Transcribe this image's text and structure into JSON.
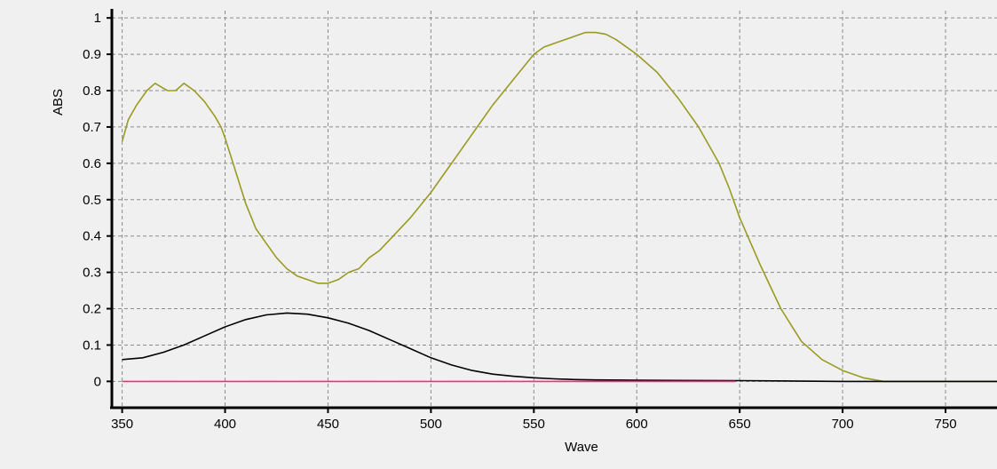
{
  "chart_data": {
    "type": "line",
    "title": "",
    "xlabel": "Wave",
    "ylabel": "ABS",
    "xlim": [
      345,
      775
    ],
    "ylim": [
      -0.07,
      1.02
    ],
    "xticks": [
      350,
      400,
      450,
      500,
      550,
      600,
      650,
      700,
      750
    ],
    "yticks": [
      0,
      0.1,
      0.2,
      0.3,
      0.4,
      0.5,
      0.6,
      0.7,
      0.8,
      0.9,
      1
    ],
    "xtick_labels": [
      "350",
      "400",
      "450",
      "500",
      "550",
      "600",
      "650",
      "700",
      "750"
    ],
    "ytick_labels": [
      "0",
      "0.1",
      "0.2",
      "0.3",
      "0.4",
      "0.5",
      "0.6",
      "0.7",
      "0.8",
      "0.9",
      "1"
    ],
    "grid": true,
    "legend": "none",
    "series": [
      {
        "color": "#9a9a22",
        "x": [
          350,
          353,
          357,
          362,
          366,
          369,
          372,
          376,
          380,
          385,
          390,
          395,
          398,
          400,
          405,
          410,
          415,
          420,
          425,
          430,
          435,
          440,
          445,
          450,
          455,
          460,
          465,
          470,
          475,
          480,
          490,
          500,
          510,
          520,
          530,
          540,
          550,
          555,
          560,
          565,
          570,
          575,
          580,
          585,
          590,
          600,
          610,
          620,
          630,
          640,
          645,
          650,
          660,
          670,
          680,
          690,
          700,
          710,
          720,
          723,
          730,
          750,
          775
        ],
        "y": [
          0.66,
          0.72,
          0.76,
          0.8,
          0.82,
          0.81,
          0.8,
          0.8,
          0.82,
          0.8,
          0.77,
          0.73,
          0.7,
          0.67,
          0.58,
          0.49,
          0.42,
          0.38,
          0.34,
          0.31,
          0.29,
          0.28,
          0.27,
          0.27,
          0.28,
          0.3,
          0.31,
          0.34,
          0.36,
          0.39,
          0.45,
          0.52,
          0.6,
          0.68,
          0.76,
          0.83,
          0.9,
          0.92,
          0.93,
          0.94,
          0.95,
          0.96,
          0.96,
          0.955,
          0.94,
          0.9,
          0.85,
          0.78,
          0.7,
          0.6,
          0.53,
          0.45,
          0.32,
          0.2,
          0.11,
          0.06,
          0.03,
          0.01,
          0.0,
          0.0,
          0.0,
          0.0,
          0.0
        ]
      },
      {
        "color": "#000000",
        "x": [
          350,
          360,
          370,
          380,
          390,
          400,
          410,
          420,
          430,
          440,
          450,
          460,
          470,
          480,
          490,
          500,
          510,
          520,
          530,
          540,
          550,
          560,
          570,
          580,
          600,
          650,
          700,
          775
        ],
        "y": [
          0.06,
          0.065,
          0.08,
          0.1,
          0.125,
          0.15,
          0.17,
          0.183,
          0.188,
          0.185,
          0.175,
          0.16,
          0.14,
          0.115,
          0.09,
          0.065,
          0.045,
          0.03,
          0.02,
          0.014,
          0.01,
          0.007,
          0.005,
          0.004,
          0.003,
          0.002,
          0.0,
          0.0
        ]
      },
      {
        "color": "#ff2a7a",
        "x": [
          350,
          648
        ],
        "y": [
          0,
          0
        ]
      }
    ]
  }
}
